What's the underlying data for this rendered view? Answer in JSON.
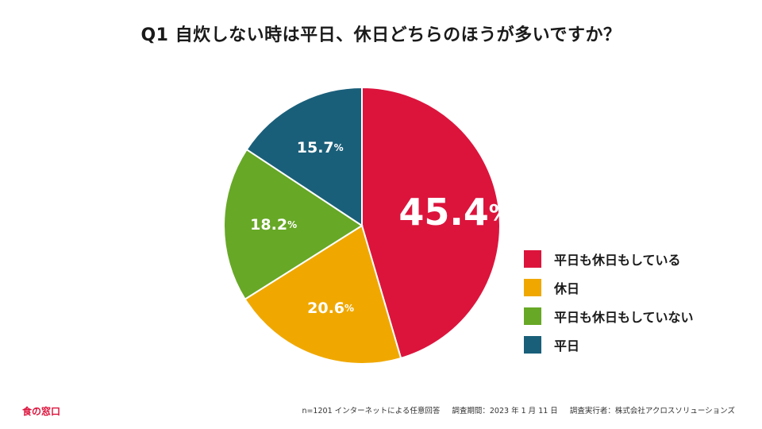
{
  "chart_data": {
    "type": "pie",
    "title": "Q1 自炊しない時は平日、休日どちらのほうが多いですか？",
    "slices": [
      {
        "label": "平日も休日もしている",
        "value": 45.4,
        "display": "45.4",
        "unit": "%",
        "color": "#dc143c"
      },
      {
        "label": "休日",
        "value": 20.6,
        "display": "20.6",
        "unit": "%",
        "color": "#f0a800"
      },
      {
        "label": "平日も休日もしていない",
        "value": 18.2,
        "display": "18.2",
        "unit": "%",
        "color": "#67a826"
      },
      {
        "label": "平日",
        "value": 15.7,
        "display": "15.7",
        "unit": "%",
        "color": "#1a5f7a"
      }
    ],
    "start_angle_deg": 0,
    "direction": "clockwise",
    "legend_position": "right"
  },
  "logo": "食の窓口",
  "footer": {
    "sample": "n=1201 インターネットによる任意回答",
    "period": "調査期間：2023 年 1 月 11 日",
    "conductor": "調査実行者：株式会社アクロスソリューションズ"
  }
}
